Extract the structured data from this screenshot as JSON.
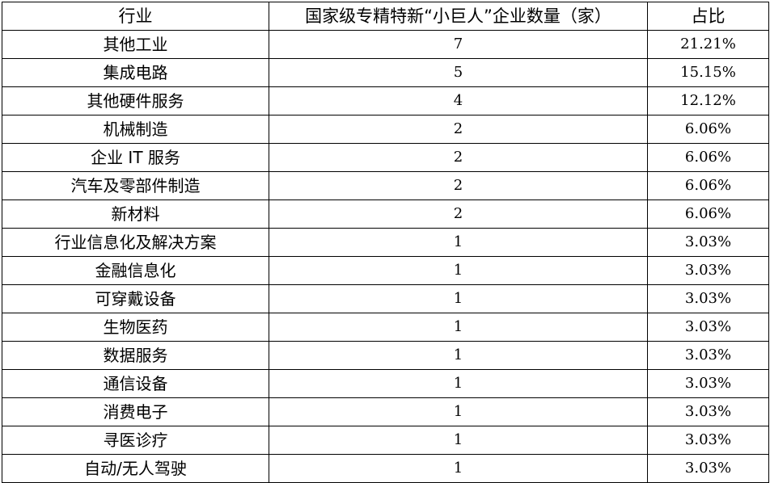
{
  "table": {
    "headers": [
      "行业",
      "国家级专精特新“小巨人”企业数量（家）",
      "占比"
    ],
    "rows": [
      [
        "其他工业",
        "7",
        "21.21%"
      ],
      [
        "集成电路",
        "5",
        "15.15%"
      ],
      [
        "其他硬件服务",
        "4",
        "12.12%"
      ],
      [
        "机械制造",
        "2",
        "6.06%"
      ],
      [
        "企业 IT 服务",
        "2",
        "6.06%"
      ],
      [
        "汽车及零部件制造",
        "2",
        "6.06%"
      ],
      [
        "新材料",
        "2",
        "6.06%"
      ],
      [
        "行业信息化及解决方案",
        "1",
        "3.03%"
      ],
      [
        "金融信息化",
        "1",
        "3.03%"
      ],
      [
        "可穿戴设备",
        "1",
        "3.03%"
      ],
      [
        "生物医药",
        "1",
        "3.03%"
      ],
      [
        "数据服务",
        "1",
        "3.03%"
      ],
      [
        "通信设备",
        "1",
        "3.03%"
      ],
      [
        "消费电子",
        "1",
        "3.03%"
      ],
      [
        "寻医诊疗",
        "1",
        "3.03%"
      ],
      [
        "自动/无人驾驶",
        "1",
        "3.03%"
      ]
    ]
  }
}
